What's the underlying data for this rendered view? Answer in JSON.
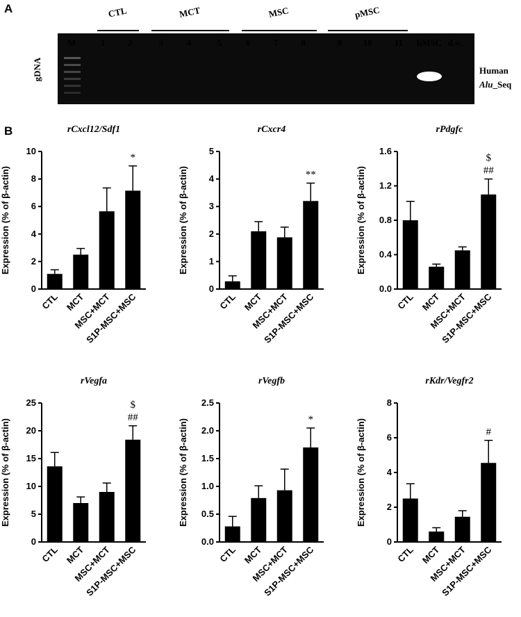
{
  "panel_a": {
    "label": "A",
    "side_label": "gDNA",
    "right_label": [
      "Human",
      "Alu",
      "_Seq"
    ],
    "groups": [
      {
        "name": "CTL",
        "lanes": [
          "1",
          "2"
        ]
      },
      {
        "name": "MCT",
        "lanes": [
          "3",
          "4",
          "5"
        ]
      },
      {
        "name": "MSC",
        "lanes": [
          "6",
          "7",
          "8"
        ]
      },
      {
        "name": "pMSC",
        "lanes": [
          "9",
          "10",
          "11"
        ]
      }
    ],
    "ladder_label": "M",
    "extra_lanes": [
      "hMSC",
      "d.w."
    ]
  },
  "panel_b_label": "B",
  "chart_data": [
    {
      "type": "bar",
      "title": "rCxcl12/Sdf1",
      "y_label": "Expression (% of β-actin)",
      "categories": [
        "CTL",
        "MCT",
        "MSC+MCT",
        "S1P-MSC+MSC"
      ],
      "values": [
        1.1,
        2.5,
        5.65,
        7.15
      ],
      "errors": [
        0.3,
        0.45,
        1.7,
        1.8
      ],
      "color": "#000000",
      "ylim": [
        0,
        10
      ],
      "yticks": [
        0,
        2,
        4,
        6,
        8,
        10
      ],
      "annotation": [
        "*"
      ]
    },
    {
      "type": "bar",
      "title": "rCxcr4",
      "y_label": "Expression (% of β-actin)",
      "categories": [
        "CTL",
        "MCT",
        "MSC+MCT",
        "S1P-MSC+MSC"
      ],
      "values": [
        0.28,
        2.1,
        1.88,
        3.2
      ],
      "errors": [
        0.2,
        0.35,
        0.37,
        0.65
      ],
      "color": "#000000",
      "ylim": [
        0,
        5
      ],
      "yticks": [
        0,
        1,
        2,
        3,
        4,
        5
      ],
      "annotation": [
        "**"
      ]
    },
    {
      "type": "bar",
      "title": "rPdgfc",
      "y_label": "Expression (% of β-actin)",
      "categories": [
        "CTL",
        "MCT",
        "MSC+MCT",
        "S1P-MSC+MSC"
      ],
      "values": [
        0.8,
        0.26,
        0.45,
        1.1
      ],
      "errors": [
        0.22,
        0.03,
        0.04,
        0.18
      ],
      "color": "#000000",
      "ylim": [
        0,
        1.6
      ],
      "yticks": [
        {
          "value": 0,
          "label": "0.0"
        },
        0.4,
        0.8,
        1.2,
        1.6
      ],
      "annotation": [
        "$",
        "##"
      ]
    },
    {
      "type": "bar",
      "title": "rVegfa",
      "y_label": "Expression (% of β-actin)",
      "categories": [
        "CTL",
        "MCT",
        "MSC+MCT",
        "S1P-MSC+MSC"
      ],
      "values": [
        13.6,
        7.0,
        9.0,
        18.4
      ],
      "errors": [
        2.5,
        1.1,
        1.6,
        2.5
      ],
      "color": "#000000",
      "ylim": [
        0,
        25
      ],
      "yticks": [
        0,
        5,
        10,
        15,
        20,
        25
      ],
      "annotation": [
        "$",
        "##"
      ]
    },
    {
      "type": "bar",
      "title": "rVegfb",
      "y_label": "Expression (% of β-actin)",
      "categories": [
        "CTL",
        "MCT",
        "MSC+MCT",
        "S1P-MSC+MSC"
      ],
      "values": [
        0.28,
        0.79,
        0.93,
        1.7
      ],
      "errors": [
        0.18,
        0.22,
        0.38,
        0.35
      ],
      "color": "#000000",
      "ylim": [
        0,
        2.5
      ],
      "yticks": [
        {
          "value": 0,
          "label": "0.0"
        },
        0.5,
        {
          "value": 1,
          "label": "1.0"
        },
        1.5,
        {
          "value": 2,
          "label": "2.0"
        },
        2.5
      ],
      "annotation": [
        "*"
      ]
    },
    {
      "type": "bar",
      "title": "rKdr/Vegfr2",
      "y_label": "Expression (% of β-actin)",
      "categories": [
        "CTL",
        "MCT",
        "MSC+MCT",
        "S1P-MSC+MSC"
      ],
      "values": [
        2.5,
        0.6,
        1.45,
        4.55
      ],
      "errors": [
        0.85,
        0.22,
        0.35,
        1.3
      ],
      "color": "#000000",
      "ylim": [
        0,
        8
      ],
      "yticks": [
        0,
        2,
        4,
        6,
        8
      ],
      "annotation": [
        "#"
      ]
    }
  ]
}
